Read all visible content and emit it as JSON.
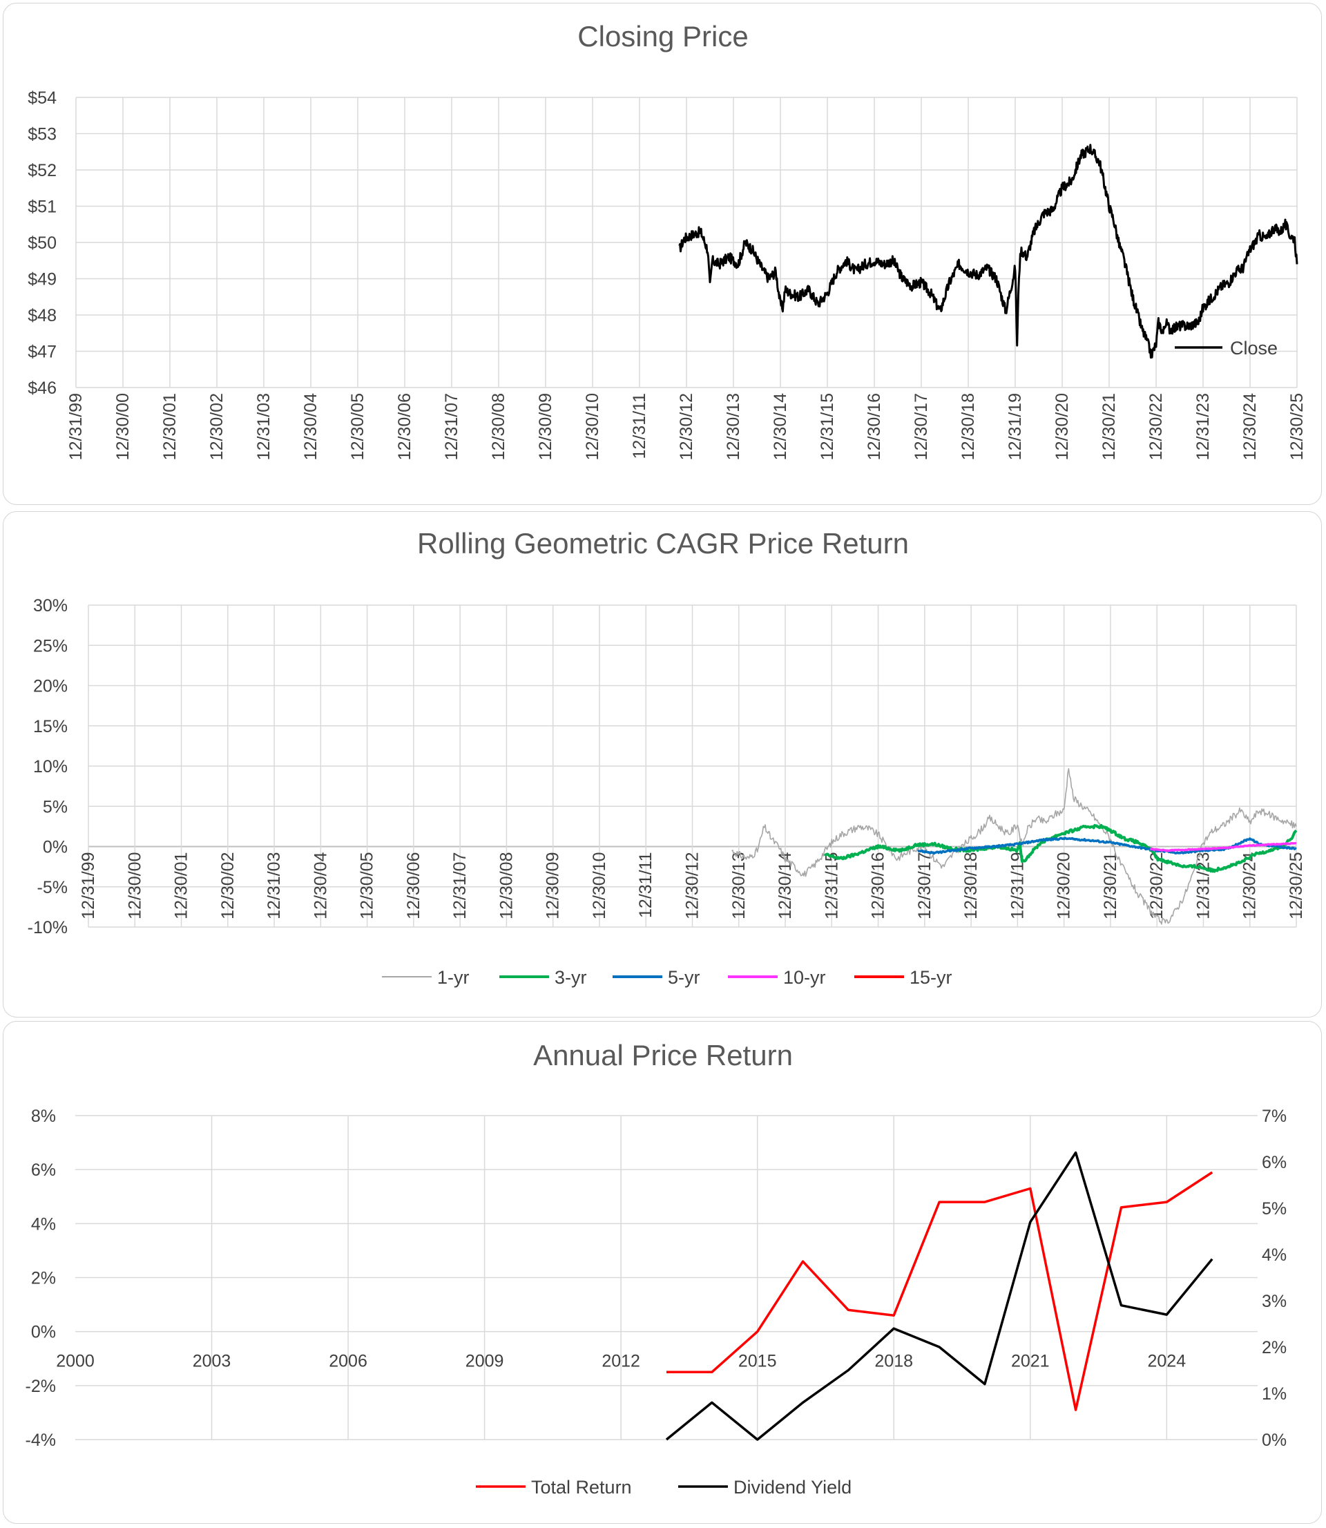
{
  "chart_data": [
    {
      "type": "line",
      "title": "Closing Price",
      "xlabel": "",
      "ylabel": "",
      "x_tick_labels": [
        "12/31/99",
        "12/30/00",
        "12/30/01",
        "12/30/02",
        "12/31/03",
        "12/30/04",
        "12/30/05",
        "12/30/06",
        "12/31/07",
        "12/30/08",
        "12/30/09",
        "12/30/10",
        "12/31/11",
        "12/30/12",
        "12/30/13",
        "12/30/14",
        "12/31/15",
        "12/30/16",
        "12/30/17",
        "12/30/18",
        "12/31/19",
        "12/30/20",
        "12/30/21",
        "12/30/22",
        "12/31/23",
        "12/30/24",
        "12/30/25"
      ],
      "y_tick_labels": [
        "$46",
        "$47",
        "$48",
        "$49",
        "$50",
        "$51",
        "$52",
        "$53",
        "$54"
      ],
      "xlim": [
        2000,
        2026
      ],
      "ylim": [
        46,
        54
      ],
      "legend_position": "bottom-right inside",
      "series": [
        {
          "name": "Close",
          "color": "#000000",
          "x": [
            2012.85,
            2012.95,
            2013.1,
            2013.3,
            2013.45,
            2013.5,
            2013.55,
            2013.7,
            2013.9,
            2014.1,
            2014.25,
            2014.4,
            2014.6,
            2014.75,
            2014.9,
            2015.0,
            2015.05,
            2015.1,
            2015.2,
            2015.4,
            2015.6,
            2015.8,
            2016.0,
            2016.2,
            2016.4,
            2016.6,
            2016.8,
            2017.0,
            2017.2,
            2017.4,
            2017.6,
            2017.8,
            2018.0,
            2018.2,
            2018.4,
            2018.6,
            2018.8,
            2019.0,
            2019.2,
            2019.4,
            2019.6,
            2019.8,
            2020.0,
            2020.04,
            2020.08,
            2020.12,
            2020.25,
            2020.4,
            2020.6,
            2020.8,
            2021.0,
            2021.2,
            2021.4,
            2021.6,
            2021.8,
            2022.0,
            2022.1,
            2022.2,
            2022.3,
            2022.5,
            2022.7,
            2022.8,
            2022.9,
            2023.0,
            2023.05,
            2023.15,
            2023.2,
            2023.3,
            2023.5,
            2023.7,
            2023.9,
            2024.0,
            2024.2,
            2024.4,
            2024.55,
            2024.7,
            2024.85,
            2025.0,
            2025.1,
            2025.2,
            2025.35,
            2025.5,
            2025.65,
            2025.75,
            2025.85,
            2025.95,
            2026.0
          ],
          "y": [
            49.8,
            50.1,
            50.2,
            50.3,
            49.8,
            48.8,
            49.5,
            49.4,
            49.6,
            49.4,
            50.0,
            49.8,
            49.3,
            49.0,
            49.2,
            48.3,
            48.2,
            48.7,
            48.6,
            48.5,
            48.7,
            48.3,
            48.6,
            49.2,
            49.5,
            49.2,
            49.4,
            49.5,
            49.4,
            49.5,
            49.0,
            48.8,
            48.9,
            48.6,
            48.1,
            48.9,
            49.4,
            49.2,
            49.1,
            49.3,
            49.0,
            48.1,
            49.3,
            47.2,
            49.1,
            49.8,
            49.6,
            50.3,
            50.8,
            50.9,
            51.5,
            51.7,
            52.4,
            52.6,
            52.2,
            51.0,
            50.6,
            50.0,
            49.6,
            48.5,
            47.6,
            47.3,
            46.9,
            47.2,
            47.8,
            47.5,
            47.8,
            47.6,
            47.7,
            47.7,
            47.8,
            48.2,
            48.5,
            48.8,
            48.9,
            49.2,
            49.3,
            49.8,
            50.0,
            50.2,
            50.1,
            50.4,
            50.3,
            50.5,
            50.2,
            50.1,
            49.4
          ]
        }
      ]
    },
    {
      "type": "line",
      "title": "Rolling Geometric CAGR Price Return",
      "xlabel": "",
      "ylabel": "",
      "x_tick_labels": [
        "12/31/99",
        "12/30/00",
        "12/30/01",
        "12/30/02",
        "12/31/03",
        "12/30/04",
        "12/30/05",
        "12/30/06",
        "12/31/07",
        "12/30/08",
        "12/30/09",
        "12/30/10",
        "12/31/11",
        "12/30/12",
        "12/30/13",
        "12/30/14",
        "12/31/15",
        "12/30/16",
        "12/30/17",
        "12/30/18",
        "12/31/19",
        "12/30/20",
        "12/30/21",
        "12/30/22",
        "12/31/23",
        "12/30/24",
        "12/30/25"
      ],
      "y_tick_labels": [
        "-10%",
        "-5%",
        "0%",
        "5%",
        "10%",
        "15%",
        "20%",
        "25%",
        "30%"
      ],
      "xlim": [
        2000,
        2026
      ],
      "ylim": [
        -10,
        30
      ],
      "legend_position": "bottom",
      "series": [
        {
          "name": "1-yr",
          "color": "#a6a6a6",
          "x": [
            2013.85,
            2014.0,
            2014.2,
            2014.4,
            2014.55,
            2014.7,
            2014.85,
            2015.0,
            2015.2,
            2015.4,
            2015.6,
            2015.8,
            2016.0,
            2016.2,
            2016.4,
            2016.6,
            2016.8,
            2017.0,
            2017.2,
            2017.4,
            2017.6,
            2017.8,
            2018.0,
            2018.2,
            2018.4,
            2018.6,
            2018.8,
            2019.0,
            2019.2,
            2019.4,
            2019.6,
            2019.8,
            2020.0,
            2020.1,
            2020.2,
            2020.4,
            2020.6,
            2020.8,
            2021.0,
            2021.1,
            2021.2,
            2021.4,
            2021.6,
            2021.8,
            2022.0,
            2022.2,
            2022.4,
            2022.6,
            2022.8,
            2023.0,
            2023.2,
            2023.4,
            2023.6,
            2023.8,
            2024.0,
            2024.2,
            2024.4,
            2024.6,
            2024.8,
            2025.0,
            2025.2,
            2025.4,
            2025.6,
            2025.8,
            2026.0
          ],
          "y": [
            -0.5,
            -1.0,
            -1.5,
            -0.5,
            2.5,
            1.0,
            0.0,
            -1.5,
            -2.5,
            -3.5,
            -2.5,
            -1.0,
            0.5,
            1.5,
            2.0,
            2.5,
            2.2,
            1.5,
            0.0,
            -1.5,
            -0.8,
            -0.2,
            0.0,
            -1.5,
            -2.5,
            -1.0,
            0.0,
            1.0,
            2.0,
            3.5,
            2.5,
            1.5,
            2.8,
            0.0,
            2.0,
            3.5,
            3.0,
            4.0,
            4.5,
            10.0,
            6.0,
            5.0,
            4.0,
            2.5,
            1.0,
            -2.0,
            -4.0,
            -6.0,
            -7.5,
            -9.0,
            -9.5,
            -8.0,
            -6.0,
            -3.0,
            0.5,
            2.0,
            2.5,
            3.5,
            4.5,
            3.0,
            4.5,
            4.0,
            3.5,
            3.0,
            2.5
          ]
        },
        {
          "name": "3-yr",
          "color": "#00b050",
          "x": [
            2015.85,
            2016.2,
            2016.5,
            2017.0,
            2017.5,
            2017.8,
            2018.2,
            2018.6,
            2019.0,
            2019.3,
            2019.6,
            2020.0,
            2020.05,
            2020.1,
            2020.5,
            2020.9,
            2021.2,
            2021.5,
            2021.8,
            2022.0,
            2022.3,
            2022.6,
            2022.9,
            2023.0,
            2023.3,
            2023.6,
            2023.9,
            2024.2,
            2024.5,
            2024.8,
            2025.1,
            2025.4,
            2025.7,
            2025.9,
            2026.0
          ],
          "y": [
            -1.0,
            -1.5,
            -1.0,
            0.0,
            -0.5,
            0.2,
            0.3,
            -0.3,
            -0.5,
            -0.2,
            0.0,
            -0.5,
            0.5,
            -2.0,
            0.5,
            1.5,
            2.0,
            2.5,
            2.5,
            2.0,
            1.0,
            0.5,
            -0.5,
            -1.5,
            -2.0,
            -2.5,
            -2.5,
            -3.0,
            -2.5,
            -2.0,
            -1.0,
            -0.5,
            0.0,
            1.0,
            2.0
          ]
        },
        {
          "name": "5-yr",
          "color": "#0070c0",
          "x": [
            2017.85,
            2018.2,
            2018.6,
            2019.0,
            2019.5,
            2020.0,
            2020.5,
            2021.0,
            2021.5,
            2022.0,
            2022.5,
            2023.0,
            2023.5,
            2024.0,
            2024.5,
            2024.8,
            2025.0,
            2025.2,
            2025.6,
            2026.0
          ],
          "y": [
            -0.5,
            -0.8,
            -0.5,
            -0.2,
            0.0,
            0.3,
            0.8,
            1.0,
            0.8,
            0.5,
            0.0,
            -0.5,
            -0.8,
            -0.5,
            -0.3,
            0.5,
            1.0,
            0.3,
            0.0,
            -0.3
          ]
        },
        {
          "name": "10-yr",
          "color": "#ff33ff",
          "x": [
            2022.85,
            2023.2,
            2023.6,
            2024.0,
            2024.4,
            2024.8,
            2025.2,
            2025.6,
            2026.0
          ],
          "y": [
            -0.3,
            -0.5,
            -0.4,
            -0.3,
            -0.2,
            0.0,
            0.2,
            0.3,
            0.4
          ]
        },
        {
          "name": "15-yr",
          "color": "#ff0000",
          "x": [],
          "y": []
        }
      ]
    },
    {
      "type": "line",
      "title": "Annual Price Return",
      "xlabel": "",
      "ylabel": "",
      "x": [
        2013,
        2014,
        2015,
        2016,
        2017,
        2018,
        2019,
        2020,
        2021,
        2022,
        2023,
        2024,
        2025
      ],
      "x_tick_labels": [
        "2000",
        "2003",
        "2006",
        "2009",
        "2012",
        "2015",
        "2018",
        "2021",
        "2024"
      ],
      "y_tick_labels": [
        "-4%",
        "-2%",
        "0%",
        "2%",
        "4%",
        "6%",
        "8%"
      ],
      "y2_tick_labels": [
        "0%",
        "1%",
        "2%",
        "3%",
        "4%",
        "5%",
        "6%",
        "7%"
      ],
      "xlim": [
        2000,
        2026
      ],
      "ylim": [
        -4,
        8
      ],
      "y2lim": [
        0,
        7
      ],
      "legend_position": "bottom",
      "series": [
        {
          "name": "Total Return",
          "color": "#ff0000",
          "axis": "left",
          "values": [
            -1.5,
            -1.5,
            0.0,
            2.6,
            0.8,
            0.6,
            4.8,
            4.8,
            5.3,
            -2.9,
            4.6,
            4.8,
            5.9
          ]
        },
        {
          "name": "Dividend Yield",
          "color": "#000000",
          "axis": "right",
          "values": [
            0.0,
            0.8,
            0.0,
            0.8,
            1.5,
            2.4,
            2.0,
            1.2,
            4.7,
            6.2,
            2.9,
            2.7,
            3.9
          ]
        }
      ]
    }
  ]
}
